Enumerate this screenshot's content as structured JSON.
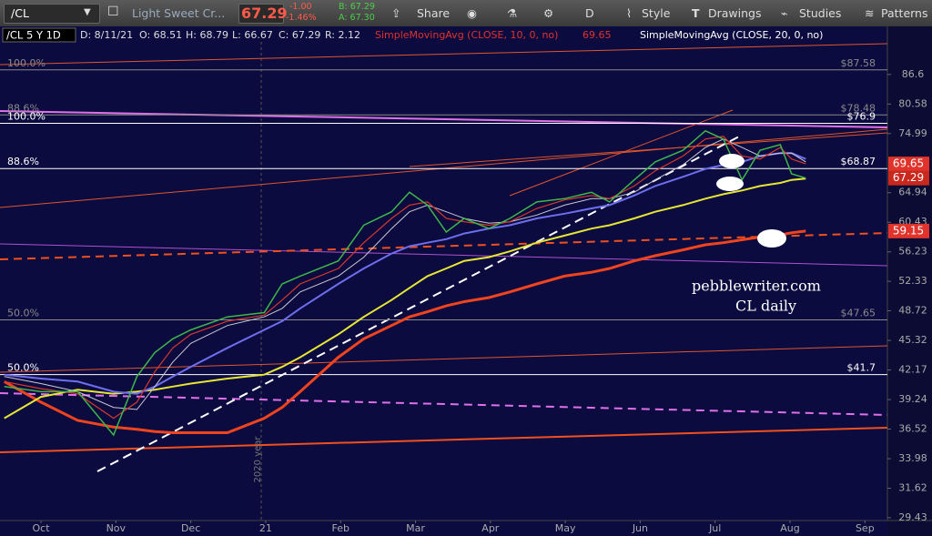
{
  "toolbar": {
    "symbol": "/CL",
    "description": "Light Sweet Cr...",
    "last": "67.29",
    "change": "-1.00",
    "change_pct": "-1.46%",
    "bid": "B: 67.29",
    "ask": "A: 67.30",
    "share": "Share",
    "period": "D",
    "style": "Style",
    "drawings": "Drawings",
    "studies": "Studies",
    "patterns": "Patterns"
  },
  "header": {
    "symbol": "/CL 5 Y 1D",
    "date": "D: 8/11/21",
    "open": "O: 68.51",
    "high": "H: 68.79",
    "low": "L: 66.67",
    "close": "C: 67.29",
    "range": "R: 2.12"
  },
  "chart_data": {
    "type": "line",
    "annotations": [
      "pebblewriter.com",
      "CL daily",
      "2020 year"
    ],
    "x": [
      -0.49,
      0,
      0.49,
      0.97,
      1.28,
      1.52,
      1.76,
      2.0,
      2.49,
      2.98,
      3.22,
      3.46,
      3.97,
      4.31,
      4.68,
      4.92,
      5.16,
      5.41,
      5.65,
      5.98,
      6.26,
      6.62,
      6.99,
      7.35,
      7.59,
      7.92,
      8.2,
      8.57,
      8.87,
      9.11,
      9.36,
      9.6,
      9.87,
      10.02,
      10.21
    ],
    "series": [
      {
        "color": "#3fb54a",
        "values": [
          40.5,
          40,
          40,
          36,
          41.5,
          44,
          45.5,
          46.5,
          48,
          48.5,
          52,
          53,
          55,
          60,
          62,
          65,
          63,
          59,
          61,
          59.5,
          61,
          63.5,
          64,
          65,
          63.5,
          67,
          70,
          72,
          75.5,
          74,
          67,
          72,
          73,
          68,
          67.29
        ]
      },
      {
        "name": "SimpleMovingAvg (CLOSE, 10, 0, no)",
        "color": "#d8392b",
        "width": 1.2,
        "values": [
          41,
          40.3,
          39.8,
          37.5,
          39,
          42,
          44.5,
          46,
          47.5,
          48.2,
          50,
          52,
          54,
          57.5,
          61,
          63,
          63.5,
          61,
          60.5,
          60,
          60.5,
          62.5,
          63.8,
          64.5,
          64,
          66,
          68.5,
          71,
          74,
          74.5,
          71,
          70.5,
          72.5,
          70.5,
          69.65
        ]
      },
      {
        "name": "SimpleMovingAvg (CLOSE, 20, 0, no)",
        "color": "#c9c9d6",
        "width": 1,
        "values": [
          41.5,
          40.8,
          40,
          38.5,
          38.3,
          40.5,
          43,
          45,
          47,
          48,
          49,
          51,
          53,
          55.5,
          59.5,
          62,
          63,
          62,
          61,
          60.3,
          60.5,
          61.5,
          63,
          64,
          64,
          65,
          67,
          69.5,
          72.5,
          74,
          72.5,
          71,
          71.5,
          71.5,
          70
        ]
      },
      {
        "color": "#6e6ef0",
        "width": 2,
        "values": [
          41.7,
          41.3,
          41,
          40,
          39.8,
          40.5,
          41.5,
          42.5,
          44.5,
          46.5,
          47.5,
          49,
          52,
          54,
          56,
          57,
          57.5,
          58,
          58.8,
          59.5,
          60,
          61,
          61.7,
          62.5,
          63,
          64.5,
          66,
          67.5,
          68.8,
          69.5,
          70,
          71,
          71.5,
          71.5,
          70.5
        ]
      },
      {
        "color": "#e6e635",
        "width": 2,
        "values": [
          37.5,
          39.5,
          40.2,
          39.8,
          40,
          40.2,
          40.5,
          40.8,
          41.3,
          41.7,
          42.5,
          43.5,
          46,
          48,
          50,
          51.5,
          53,
          54,
          55,
          55.5,
          56.3,
          57.5,
          58.5,
          59.5,
          60,
          61,
          62,
          63,
          64,
          64.7,
          65.3,
          66,
          66.5,
          67,
          67.2
        ]
      },
      {
        "color": "#f0441f",
        "width": 3,
        "values": [
          41,
          39,
          37.3,
          36.7,
          36.5,
          36.3,
          36.2,
          36.2,
          36.2,
          37.5,
          38.5,
          40,
          43.5,
          45.5,
          47,
          48,
          48.6,
          49.3,
          49.8,
          50.3,
          51,
          52,
          53,
          53.5,
          54,
          55,
          55.7,
          56.5,
          57.2,
          57.5,
          57.9,
          58.3,
          58.6,
          58.9,
          59.15
        ]
      }
    ],
    "levels": [
      {
        "label": "100.0%",
        "value": 87.58,
        "value_label": "$87.58",
        "color": "#8a8a8a"
      },
      {
        "label": "88.6%",
        "value": 78.48,
        "value_label": "$78.48",
        "color": "#8a8a8a"
      },
      {
        "label": "100.0%",
        "value": 76.9,
        "value_label": "$76.9",
        "color": "#ffffff"
      },
      {
        "label": "88.6%",
        "value": 68.87,
        "value_label": "$68.87",
        "color": "#ffffff"
      },
      {
        "label": "50.0%",
        "value": 47.65,
        "value_label": "$47.65",
        "color": "#8a8a8a"
      },
      {
        "label": "50.0%",
        "value": 41.7,
        "value_label": "$41.7",
        "color": "#ffffff"
      }
    ],
    "badges": [
      {
        "value": 69.65,
        "color": "#e0332b"
      },
      {
        "value": 67.29,
        "color": "#c8281e"
      },
      {
        "value": 59.15,
        "color": "#e0332b"
      }
    ],
    "log_scale": true,
    "ylim": [
      29.23,
      93.76
    ],
    "yticks": [
      86.6,
      80.58,
      74.99,
      64.94,
      60.43,
      56.23,
      52.33,
      48.72,
      45.32,
      42.17,
      39.24,
      36.52,
      33.98,
      31.62,
      29.43
    ],
    "xlim": [
      -0.547,
      11.3
    ],
    "xticks": [
      {
        "value": 0,
        "label": "Oct"
      },
      {
        "value": 1,
        "label": "Nov"
      },
      {
        "value": 2,
        "label": "Dec"
      },
      {
        "value": 3,
        "label": "21"
      },
      {
        "value": 4,
        "label": "Feb"
      },
      {
        "value": 5,
        "label": "Mar"
      },
      {
        "value": 6,
        "label": "Apr"
      },
      {
        "value": 7,
        "label": "May"
      },
      {
        "value": 8,
        "label": "Jun"
      },
      {
        "value": 9,
        "label": "Jul"
      },
      {
        "value": 10,
        "label": "Aug"
      },
      {
        "value": 11,
        "label": "Sep"
      }
    ]
  }
}
